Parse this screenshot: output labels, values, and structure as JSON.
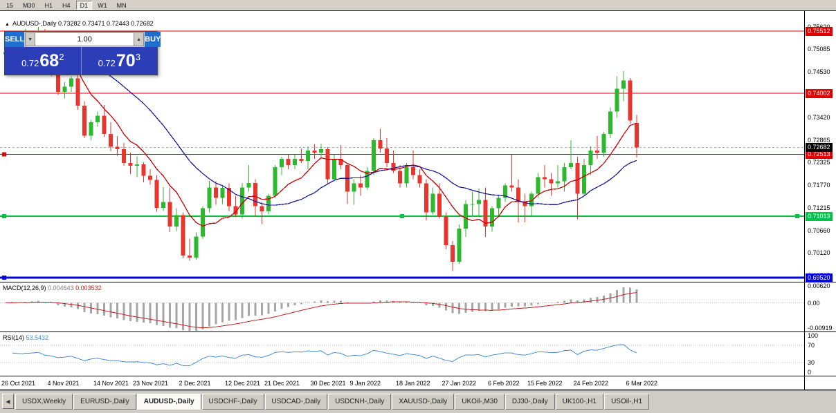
{
  "toolbar": {
    "timeframes": [
      "15",
      "M30",
      "H1",
      "H4",
      "D1",
      "W1",
      "MN"
    ],
    "active_timeframe": "D1"
  },
  "chart_header": {
    "collapse_glyph": "▲",
    "symbol_title": "AUDUSD-,Daily",
    "ohlc": "0.73282 0.73471 0.72443 0.72682"
  },
  "trade_panel": {
    "sell_label": "SELL",
    "buy_label": "BUY",
    "volume": "1.00",
    "sell_price_main": "0.72",
    "sell_price_big": "68",
    "sell_price_sup": "2",
    "buy_price_main": "0.72",
    "buy_price_big": "70",
    "buy_price_sup": "3"
  },
  "icons": {
    "caret_down": "▼",
    "caret_up": "▲",
    "arrow_left": "◀"
  },
  "price_axis": {
    "ticks": [
      "0.75620",
      "0.75085",
      "0.74530",
      "0.73975",
      "0.73420",
      "0.72865",
      "0.72325",
      "0.71770",
      "0.71215",
      "0.70660",
      "0.70120",
      "0.69565"
    ],
    "current_price_badge": {
      "text": "0.72682",
      "bg": "#000000"
    }
  },
  "chart_data": {
    "type": "candlestick",
    "symbol": "AUDUSD-",
    "timeframe": "Daily",
    "price_range": {
      "max": 0.76,
      "min": 0.6942
    },
    "colors": {
      "bull": "#2db82d",
      "bear": "#e8352e",
      "ma_fast": "#cc0000",
      "ma_slow": "#1a1a99"
    },
    "current_price": 0.72682,
    "levels": [
      {
        "value": 0.75512,
        "label": "0.75512",
        "color": "#e00000",
        "width": 1,
        "handles": "none"
      },
      {
        "value": 0.74002,
        "label": "0.74002",
        "color": "#e00000",
        "width": 1,
        "handles": "none"
      },
      {
        "value": 0.72513,
        "label": "0.72513",
        "color": "#e00000",
        "width": 1,
        "handles": "left"
      },
      {
        "value": 0.71013,
        "label": "0.71013",
        "color": "#00c24a",
        "width": 2,
        "handles": "three"
      },
      {
        "value": 0.6952,
        "label": "0.69520",
        "color": "#0000dd",
        "width": 3,
        "handles": "left"
      }
    ],
    "candles": [
      [
        0.7495,
        0.7516,
        0.7478,
        0.75
      ],
      [
        0.75,
        0.7536,
        0.7494,
        0.753
      ],
      [
        0.753,
        0.7547,
        0.7505,
        0.7512
      ],
      [
        0.7512,
        0.7556,
        0.7488,
        0.7518
      ],
      [
        0.7518,
        0.7536,
        0.749,
        0.7527
      ],
      [
        0.7527,
        0.7561,
        0.7512,
        0.7546
      ],
      [
        0.7546,
        0.7556,
        0.7464,
        0.7476
      ],
      [
        0.7476,
        0.7491,
        0.7441,
        0.7452
      ],
      [
        0.7452,
        0.747,
        0.7396,
        0.7404
      ],
      [
        0.7404,
        0.7427,
        0.7388,
        0.7416
      ],
      [
        0.7416,
        0.7441,
        0.7404,
        0.7436
      ],
      [
        0.7436,
        0.7446,
        0.736,
        0.737
      ],
      [
        0.737,
        0.7381,
        0.7291,
        0.7297
      ],
      [
        0.7297,
        0.7336,
        0.7285,
        0.733
      ],
      [
        0.733,
        0.7356,
        0.7319,
        0.7346
      ],
      [
        0.7346,
        0.7372,
        0.7294,
        0.7301
      ],
      [
        0.7301,
        0.733,
        0.7259,
        0.727
      ],
      [
        0.727,
        0.7296,
        0.7248,
        0.7264
      ],
      [
        0.7264,
        0.7279,
        0.7224,
        0.7231
      ],
      [
        0.7231,
        0.7256,
        0.7204,
        0.7224
      ],
      [
        0.7224,
        0.7247,
        0.7196,
        0.7227
      ],
      [
        0.7227,
        0.7232,
        0.7184,
        0.72
      ],
      [
        0.72,
        0.7216,
        0.7178,
        0.719
      ],
      [
        0.719,
        0.7201,
        0.7112,
        0.7122
      ],
      [
        0.7122,
        0.7172,
        0.7114,
        0.7136
      ],
      [
        0.7136,
        0.7171,
        0.7063,
        0.7076
      ],
      [
        0.7076,
        0.7121,
        0.7065,
        0.7104
      ],
      [
        0.7104,
        0.7111,
        0.6999,
        0.7006
      ],
      [
        0.7006,
        0.7047,
        0.6993,
        0.7001
      ],
      [
        0.7001,
        0.7062,
        0.6996,
        0.7052
      ],
      [
        0.7052,
        0.7126,
        0.7046,
        0.7121
      ],
      [
        0.7121,
        0.7187,
        0.7111,
        0.7171
      ],
      [
        0.7171,
        0.7186,
        0.7129,
        0.7146
      ],
      [
        0.7146,
        0.7176,
        0.7131,
        0.717
      ],
      [
        0.717,
        0.7181,
        0.7114,
        0.7126
      ],
      [
        0.7126,
        0.7151,
        0.7099,
        0.7106
      ],
      [
        0.7106,
        0.7182,
        0.7096,
        0.7171
      ],
      [
        0.7171,
        0.7226,
        0.7161,
        0.7182
      ],
      [
        0.7182,
        0.7191,
        0.7101,
        0.7126
      ],
      [
        0.7126,
        0.7136,
        0.7082,
        0.7113
      ],
      [
        0.7113,
        0.7156,
        0.7106,
        0.7151
      ],
      [
        0.7151,
        0.7226,
        0.7146,
        0.7221
      ],
      [
        0.7221,
        0.7246,
        0.7201,
        0.7241
      ],
      [
        0.7241,
        0.7251,
        0.7216,
        0.7226
      ],
      [
        0.7226,
        0.7251,
        0.7216,
        0.7241
      ],
      [
        0.7241,
        0.7266,
        0.7231,
        0.7236
      ],
      [
        0.7236,
        0.7271,
        0.7216,
        0.7261
      ],
      [
        0.7261,
        0.7276,
        0.7241,
        0.7256
      ],
      [
        0.7256,
        0.7278,
        0.7241,
        0.7264
      ],
      [
        0.7264,
        0.7269,
        0.7181,
        0.7191
      ],
      [
        0.7191,
        0.7251,
        0.7186,
        0.7241
      ],
      [
        0.7241,
        0.7274,
        0.7216,
        0.7226
      ],
      [
        0.7226,
        0.7231,
        0.7131,
        0.7161
      ],
      [
        0.7161,
        0.7191,
        0.7129,
        0.7181
      ],
      [
        0.7181,
        0.7201,
        0.7151,
        0.7171
      ],
      [
        0.7171,
        0.7221,
        0.7166,
        0.7211
      ],
      [
        0.7211,
        0.7291,
        0.7201,
        0.7286
      ],
      [
        0.7286,
        0.7314,
        0.7256,
        0.7266
      ],
      [
        0.7266,
        0.7291,
        0.7221,
        0.7231
      ],
      [
        0.7231,
        0.7261,
        0.7206,
        0.7211
      ],
      [
        0.7211,
        0.7226,
        0.7171,
        0.7181
      ],
      [
        0.7181,
        0.7231,
        0.7171,
        0.7221
      ],
      [
        0.7221,
        0.7261,
        0.7191,
        0.7201
      ],
      [
        0.7201,
        0.7216,
        0.7171,
        0.7181
      ],
      [
        0.7181,
        0.7191,
        0.7091,
        0.7111
      ],
      [
        0.7111,
        0.7171,
        0.7106,
        0.7156
      ],
      [
        0.7156,
        0.7181,
        0.7096,
        0.7101
      ],
      [
        0.7101,
        0.7111,
        0.7021,
        0.7031
      ],
      [
        0.7031,
        0.7041,
        0.6968,
        0.6991
      ],
      [
        0.6991,
        0.7081,
        0.6986,
        0.7071
      ],
      [
        0.7071,
        0.7141,
        0.7051,
        0.7131
      ],
      [
        0.7131,
        0.7161,
        0.7101,
        0.7131
      ],
      [
        0.7131,
        0.7169,
        0.7101,
        0.7141
      ],
      [
        0.7141,
        0.7171,
        0.7051,
        0.7076
      ],
      [
        0.7076,
        0.7126,
        0.7064,
        0.7121
      ],
      [
        0.7121,
        0.7151,
        0.7101,
        0.7146
      ],
      [
        0.7146,
        0.7181,
        0.7136,
        0.7176
      ],
      [
        0.7176,
        0.7251,
        0.7161,
        0.7171
      ],
      [
        0.7171,
        0.7191,
        0.7086,
        0.7136
      ],
      [
        0.7136,
        0.7156,
        0.7086,
        0.7126
      ],
      [
        0.7126,
        0.7161,
        0.7101,
        0.7156
      ],
      [
        0.7156,
        0.7206,
        0.7146,
        0.7196
      ],
      [
        0.7196,
        0.7226,
        0.7171,
        0.7191
      ],
      [
        0.7191,
        0.7206,
        0.7151,
        0.7181
      ],
      [
        0.7181,
        0.7226,
        0.7171,
        0.7186
      ],
      [
        0.7186,
        0.7231,
        0.7161,
        0.7221
      ],
      [
        0.7221,
        0.7286,
        0.7216,
        0.7231
      ],
      [
        0.7231,
        0.7246,
        0.7094,
        0.7156
      ],
      [
        0.7156,
        0.7241,
        0.7151,
        0.7226
      ],
      [
        0.7226,
        0.7271,
        0.7201,
        0.7261
      ],
      [
        0.7261,
        0.7296,
        0.7241,
        0.7256
      ],
      [
        0.7256,
        0.7306,
        0.7246,
        0.7301
      ],
      [
        0.7301,
        0.7366,
        0.7291,
        0.7356
      ],
      [
        0.7356,
        0.7441,
        0.7341,
        0.7411
      ],
      [
        0.7411,
        0.7454,
        0.7381,
        0.7431
      ],
      [
        0.7431,
        0.7437,
        0.7326,
        0.7334
      ],
      [
        0.73282,
        0.73471,
        0.72443,
        0.72682
      ]
    ],
    "date_axis": [
      {
        "label": "26 Oct 2021",
        "idx": 0
      },
      {
        "label": "4 Nov 2021",
        "idx": 7
      },
      {
        "label": "14 Nov 2021",
        "idx": 14
      },
      {
        "label": "23 Nov 2021",
        "idx": 20
      },
      {
        "label": "2 Dec 2021",
        "idx": 27
      },
      {
        "label": "12 Dec 2021",
        "idx": 34
      },
      {
        "label": "21 Dec 2021",
        "idx": 40
      },
      {
        "label": "30 Dec 2021",
        "idx": 47
      },
      {
        "label": "9 Jan 2022",
        "idx": 53
      },
      {
        "label": "18 Jan 2022",
        "idx": 60
      },
      {
        "label": "27 Jan 2022",
        "idx": 67
      },
      {
        "label": "6 Feb 2022",
        "idx": 74
      },
      {
        "label": "15 Feb 2022",
        "idx": 80
      },
      {
        "label": "24 Feb 2022",
        "idx": 87
      },
      {
        "label": "6 Mar 2022",
        "idx": 95
      }
    ],
    "indicators": {
      "macd": {
        "label": "MACD(12,26,9)",
        "value": "0.004643",
        "signal": "0.003532",
        "axis": [
          "0.00620",
          "0.00",
          "-0.00919"
        ],
        "range": {
          "max": 0.0075,
          "min": -0.0105
        }
      },
      "rsi": {
        "label": "RSI(14)",
        "value": "53.5432",
        "axis": [
          "100",
          "70",
          "30",
          "0"
        ],
        "levels": [
          70,
          30
        ],
        "range": {
          "max": 100,
          "min": 0
        }
      }
    }
  },
  "tabs": {
    "items": [
      "USDX,Weekly",
      "EURUSD-,Daily",
      "AUDUSD-,Daily",
      "USDCHF-,Daily",
      "USDCAD-,Daily",
      "USDCNH-,Daily",
      "XAUUSD-,Daily",
      "UKOil-,M30",
      "DJ30-,Daily",
      "UK100-,H1",
      "USOil-,H1"
    ],
    "active": "AUDUSD-,Daily"
  }
}
